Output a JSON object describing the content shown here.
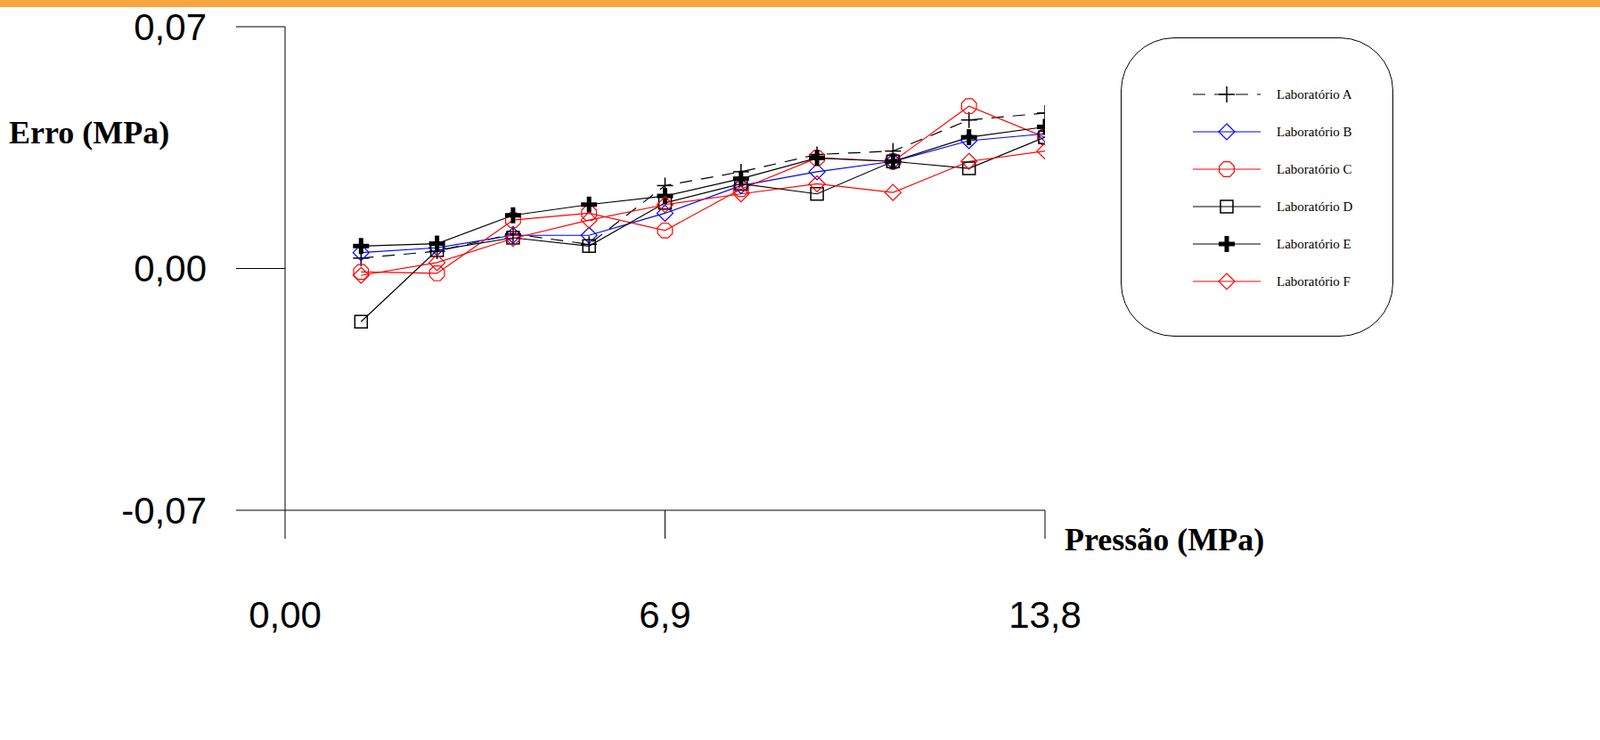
{
  "chart_data": {
    "type": "line",
    "x_label": "Pressão (MPa)",
    "y_label": "Erro (MPa)",
    "x": [
      1.38,
      2.76,
      4.14,
      5.52,
      6.9,
      8.28,
      9.66,
      11.04,
      12.42,
      13.8
    ],
    "xlim": [
      0,
      13.8
    ],
    "xticks": [
      {
        "value": 0,
        "label": "0,00"
      },
      {
        "value": 6.9,
        "label": "6,9"
      },
      {
        "value": 13.8,
        "label": "13,8"
      }
    ],
    "ylim": [
      -0.07,
      0.07
    ],
    "yticks": [
      {
        "value": -0.07,
        "label": "-0,07"
      },
      {
        "value": 0,
        "label": "0,00"
      },
      {
        "value": 0.07,
        "label": "0,07"
      }
    ],
    "grid": false,
    "legend": "top-right",
    "series": [
      {
        "name": "Laboratório A",
        "color": "#000000",
        "marker": "plus",
        "line_style": "dashed",
        "values": [
          0.003,
          0.005,
          0.01,
          0.007,
          0.024,
          0.028,
          0.033,
          0.034,
          0.043,
          0.045
        ]
      },
      {
        "name": "Laboratório B",
        "color": "#0000ff",
        "marker": "diamond",
        "line_style": "solid",
        "values": [
          0.0046,
          0.006,
          0.0096,
          0.0096,
          0.016,
          0.024,
          0.028,
          0.031,
          0.037,
          0.039
        ]
      },
      {
        "name": "Laboratório C",
        "color": "#ff0000",
        "marker": "octagon",
        "line_style": "solid",
        "values": [
          -0.001,
          -0.0014,
          0.014,
          0.016,
          0.011,
          0.023,
          0.032,
          0.031,
          0.047,
          0.038
        ]
      },
      {
        "name": "Laboratório D",
        "color": "#000000",
        "marker": "square",
        "line_style": "solid",
        "values": [
          -0.0154,
          0.0053,
          0.0089,
          0.0065,
          0.019,
          0.0245,
          0.0216,
          0.031,
          0.029,
          0.038
        ]
      },
      {
        "name": "Laboratório E",
        "color": "#000000",
        "marker": "filled_plus",
        "line_style": "solid",
        "values": [
          0.0065,
          0.0072,
          0.0154,
          0.0185,
          0.021,
          0.026,
          0.032,
          0.031,
          0.038,
          0.041
        ]
      },
      {
        "name": "Laboratório F",
        "color": "#ff0000",
        "marker": "diamond",
        "line_style": "solid",
        "values": [
          -0.002,
          0.0017,
          0.0087,
          0.014,
          0.0185,
          0.0216,
          0.0245,
          0.022,
          0.031,
          0.034
        ]
      }
    ]
  }
}
